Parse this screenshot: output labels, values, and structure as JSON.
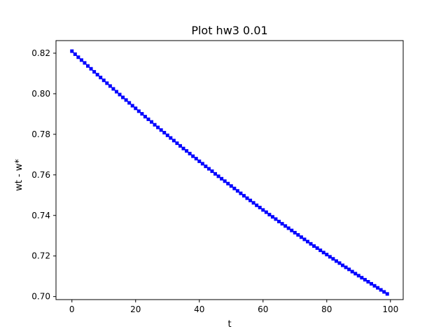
{
  "chart_data": {
    "type": "line",
    "title": "Plot hw3 0.01",
    "xlabel": "t",
    "ylabel": "wt - w*",
    "xlim": [
      -5,
      104
    ],
    "ylim": [
      0.6985,
      0.8262
    ],
    "x_ticks": [
      0,
      20,
      40,
      60,
      80,
      100
    ],
    "y_ticks": [
      0.7,
      0.72,
      0.74,
      0.76,
      0.78,
      0.8,
      0.82
    ],
    "y_tick_labels": [
      "0.70",
      "0.72",
      "0.74",
      "0.76",
      "0.78",
      "0.80",
      "0.82"
    ],
    "grid": false,
    "legend": "none",
    "series": [
      {
        "color": "#0000ff",
        "marker": "square",
        "x": [
          0,
          1,
          2,
          3,
          4,
          5,
          6,
          7,
          8,
          9,
          10,
          11,
          12,
          13,
          14,
          15,
          16,
          17,
          18,
          19,
          20,
          21,
          22,
          23,
          24,
          25,
          26,
          27,
          28,
          29,
          30,
          31,
          32,
          33,
          34,
          35,
          36,
          37,
          38,
          39,
          40,
          41,
          42,
          43,
          44,
          45,
          46,
          47,
          48,
          49,
          50,
          51,
          52,
          53,
          54,
          55,
          56,
          57,
          58,
          59,
          60,
          61,
          62,
          63,
          64,
          65,
          66,
          67,
          68,
          69,
          70,
          71,
          72,
          73,
          74,
          75,
          76,
          77,
          78,
          79,
          80,
          81,
          82,
          83,
          84,
          85,
          86,
          87,
          88,
          89,
          90,
          91,
          92,
          93,
          94,
          95,
          96,
          97,
          98,
          99
        ],
        "y": [
          0.821,
          0.8195,
          0.818,
          0.8166,
          0.8152,
          0.8137,
          0.8123,
          0.8108,
          0.8094,
          0.808,
          0.8066,
          0.8052,
          0.8038,
          0.8024,
          0.801,
          0.7996,
          0.7982,
          0.7969,
          0.7955,
          0.7941,
          0.7928,
          0.7914,
          0.7901,
          0.7887,
          0.7874,
          0.7861,
          0.7847,
          0.7834,
          0.7821,
          0.7808,
          0.7795,
          0.7782,
          0.7769,
          0.7756,
          0.7743,
          0.773,
          0.7718,
          0.7705,
          0.7692,
          0.768,
          0.7667,
          0.7655,
          0.7642,
          0.763,
          0.7618,
          0.7605,
          0.7593,
          0.7581,
          0.7569,
          0.7557,
          0.7545,
          0.7533,
          0.7521,
          0.7509,
          0.7497,
          0.7485,
          0.7474,
          0.7462,
          0.745,
          0.7439,
          0.7427,
          0.7416,
          0.7404,
          0.7393,
          0.7382,
          0.737,
          0.7359,
          0.7348,
          0.7337,
          0.7326,
          0.7315,
          0.7304,
          0.7293,
          0.7282,
          0.7271,
          0.726,
          0.7249,
          0.7239,
          0.7228,
          0.7217,
          0.7207,
          0.7196,
          0.7186,
          0.7175,
          0.7165,
          0.7154,
          0.7144,
          0.7134,
          0.7123,
          0.7113,
          0.7103,
          0.7093,
          0.7083,
          0.7073,
          0.7063,
          0.7053,
          0.7043,
          0.7033,
          0.7023,
          0.7013
        ]
      }
    ]
  }
}
